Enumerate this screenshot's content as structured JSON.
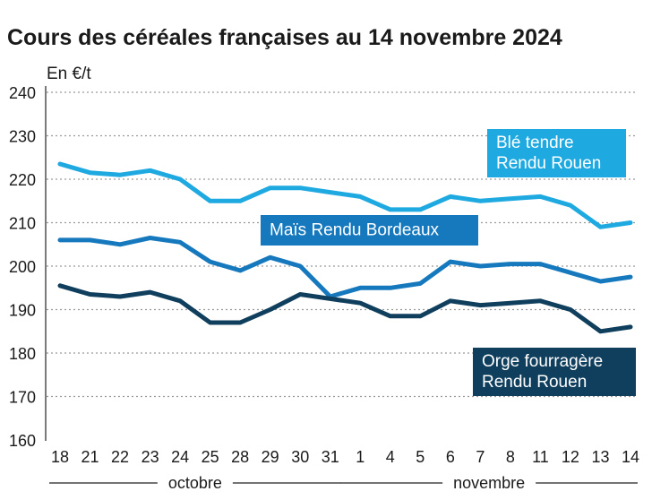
{
  "chart_data": {
    "type": "line",
    "title": "Cours des céréales françaises au 14 novembre 2024",
    "ylabel": "En €/t",
    "ylim": [
      160,
      240
    ],
    "yticks": [
      160,
      170,
      180,
      190,
      200,
      210,
      220,
      230,
      240
    ],
    "grid": true,
    "categories": [
      "18",
      "21",
      "22",
      "23",
      "24",
      "25",
      "28",
      "29",
      "30",
      "31",
      "1",
      "4",
      "5",
      "6",
      "7",
      "8",
      "11",
      "12",
      "13",
      "14"
    ],
    "months": [
      {
        "label": "octobre",
        "from": 0,
        "to": 9
      },
      {
        "label": "novembre",
        "from": 10,
        "to": 19
      }
    ],
    "series": [
      {
        "name": "Blé tendre Rendu Rouen",
        "label_lines": [
          "Blé tendre",
          "Rendu Rouen"
        ],
        "color": "#1fa9e1",
        "values": [
          223.5,
          221.5,
          221,
          222,
          220,
          215,
          215,
          218,
          218,
          217,
          216,
          213,
          213,
          216,
          215,
          215.5,
          216,
          214,
          209,
          210
        ]
      },
      {
        "name": "Maïs Rendu Bordeaux",
        "label_lines": [
          "Maïs Rendu Bordeaux"
        ],
        "color": "#1679be",
        "values": [
          206,
          206,
          205,
          206.5,
          205.5,
          201,
          199,
          202,
          200,
          193,
          195,
          195,
          196,
          201,
          200,
          200.5,
          200.5,
          198.5,
          196.5,
          197.5
        ]
      },
      {
        "name": "Orge fourragère Rendu Rouen",
        "label_lines": [
          "Orge fourragère",
          "Rendu Rouen"
        ],
        "color": "#103f5e",
        "values": [
          195.5,
          193.5,
          193,
          194,
          192,
          187,
          187,
          190,
          193.5,
          192.5,
          191.5,
          188.5,
          188.5,
          192,
          191,
          191.5,
          192,
          190,
          185,
          186
        ]
      }
    ]
  }
}
